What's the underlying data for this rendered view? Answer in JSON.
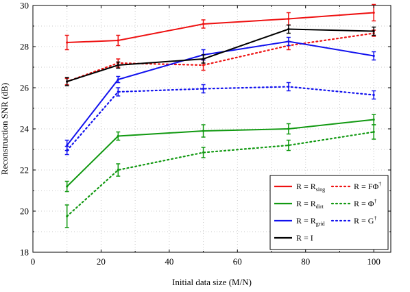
{
  "chart_data": {
    "type": "line",
    "xlabel": "Initial data size (M/N)",
    "ylabel": "Reconstruction SNR (dB)",
    "xlim": [
      0,
      105
    ],
    "ylim": [
      18,
      30
    ],
    "xticks": [
      "0",
      "20",
      "40",
      "60",
      "80",
      "100"
    ],
    "yticks": [
      "18",
      "20",
      "22",
      "24",
      "26",
      "28",
      "30"
    ],
    "grid": true,
    "legend_position": "bottom-right",
    "x": [
      10,
      25,
      50,
      75,
      100
    ],
    "series": [
      {
        "name": "R = R_sing",
        "base": "R = R",
        "sub": "sing",
        "sup": "",
        "color": "#ee1111",
        "style": "solid",
        "values": [
          28.2,
          28.3,
          29.1,
          29.35,
          29.65
        ],
        "errors": [
          0.35,
          0.25,
          0.2,
          0.3,
          0.4
        ]
      },
      {
        "name": "R = FΦ†",
        "base": "R = FΦ",
        "sub": "",
        "sup": "†",
        "color": "#ee1111",
        "style": "dotted",
        "values": [
          26.3,
          27.2,
          27.1,
          28.05,
          28.65
        ],
        "errors": [
          0.15,
          0.2,
          0.25,
          0.2,
          0.15
        ]
      },
      {
        "name": "R = R_dirt",
        "base": "R = R",
        "sub": "dirt",
        "sup": "",
        "color": "#119911",
        "style": "solid",
        "values": [
          21.2,
          23.65,
          23.9,
          24.0,
          24.45
        ],
        "errors": [
          0.25,
          0.2,
          0.3,
          0.25,
          0.25
        ]
      },
      {
        "name": "R = Φ†",
        "base": "R = Φ",
        "sub": "",
        "sup": "†",
        "color": "#119911",
        "style": "dotted",
        "values": [
          19.75,
          22.0,
          22.85,
          23.2,
          23.85
        ],
        "errors": [
          0.55,
          0.3,
          0.25,
          0.25,
          0.35
        ]
      },
      {
        "name": "R = R_grid",
        "base": "R = R",
        "sub": "grid",
        "sup": "",
        "color": "#1111ee",
        "style": "solid",
        "values": [
          23.2,
          26.4,
          27.6,
          28.25,
          27.55
        ],
        "errors": [
          0.25,
          0.15,
          0.25,
          0.2,
          0.2
        ]
      },
      {
        "name": "R = G†",
        "base": "R = G",
        "sub": "",
        "sup": "†",
        "color": "#1111ee",
        "style": "dotted",
        "values": [
          22.95,
          25.8,
          25.95,
          26.05,
          25.65
        ],
        "errors": [
          0.2,
          0.2,
          0.2,
          0.2,
          0.2
        ]
      },
      {
        "name": "R = I",
        "base": "R = I",
        "sub": "",
        "sup": "",
        "color": "#000000",
        "style": "solid",
        "values": [
          26.3,
          27.1,
          27.4,
          28.85,
          28.75
        ],
        "errors": [
          0.2,
          0.15,
          0.2,
          0.2,
          0.2
        ]
      }
    ]
  }
}
